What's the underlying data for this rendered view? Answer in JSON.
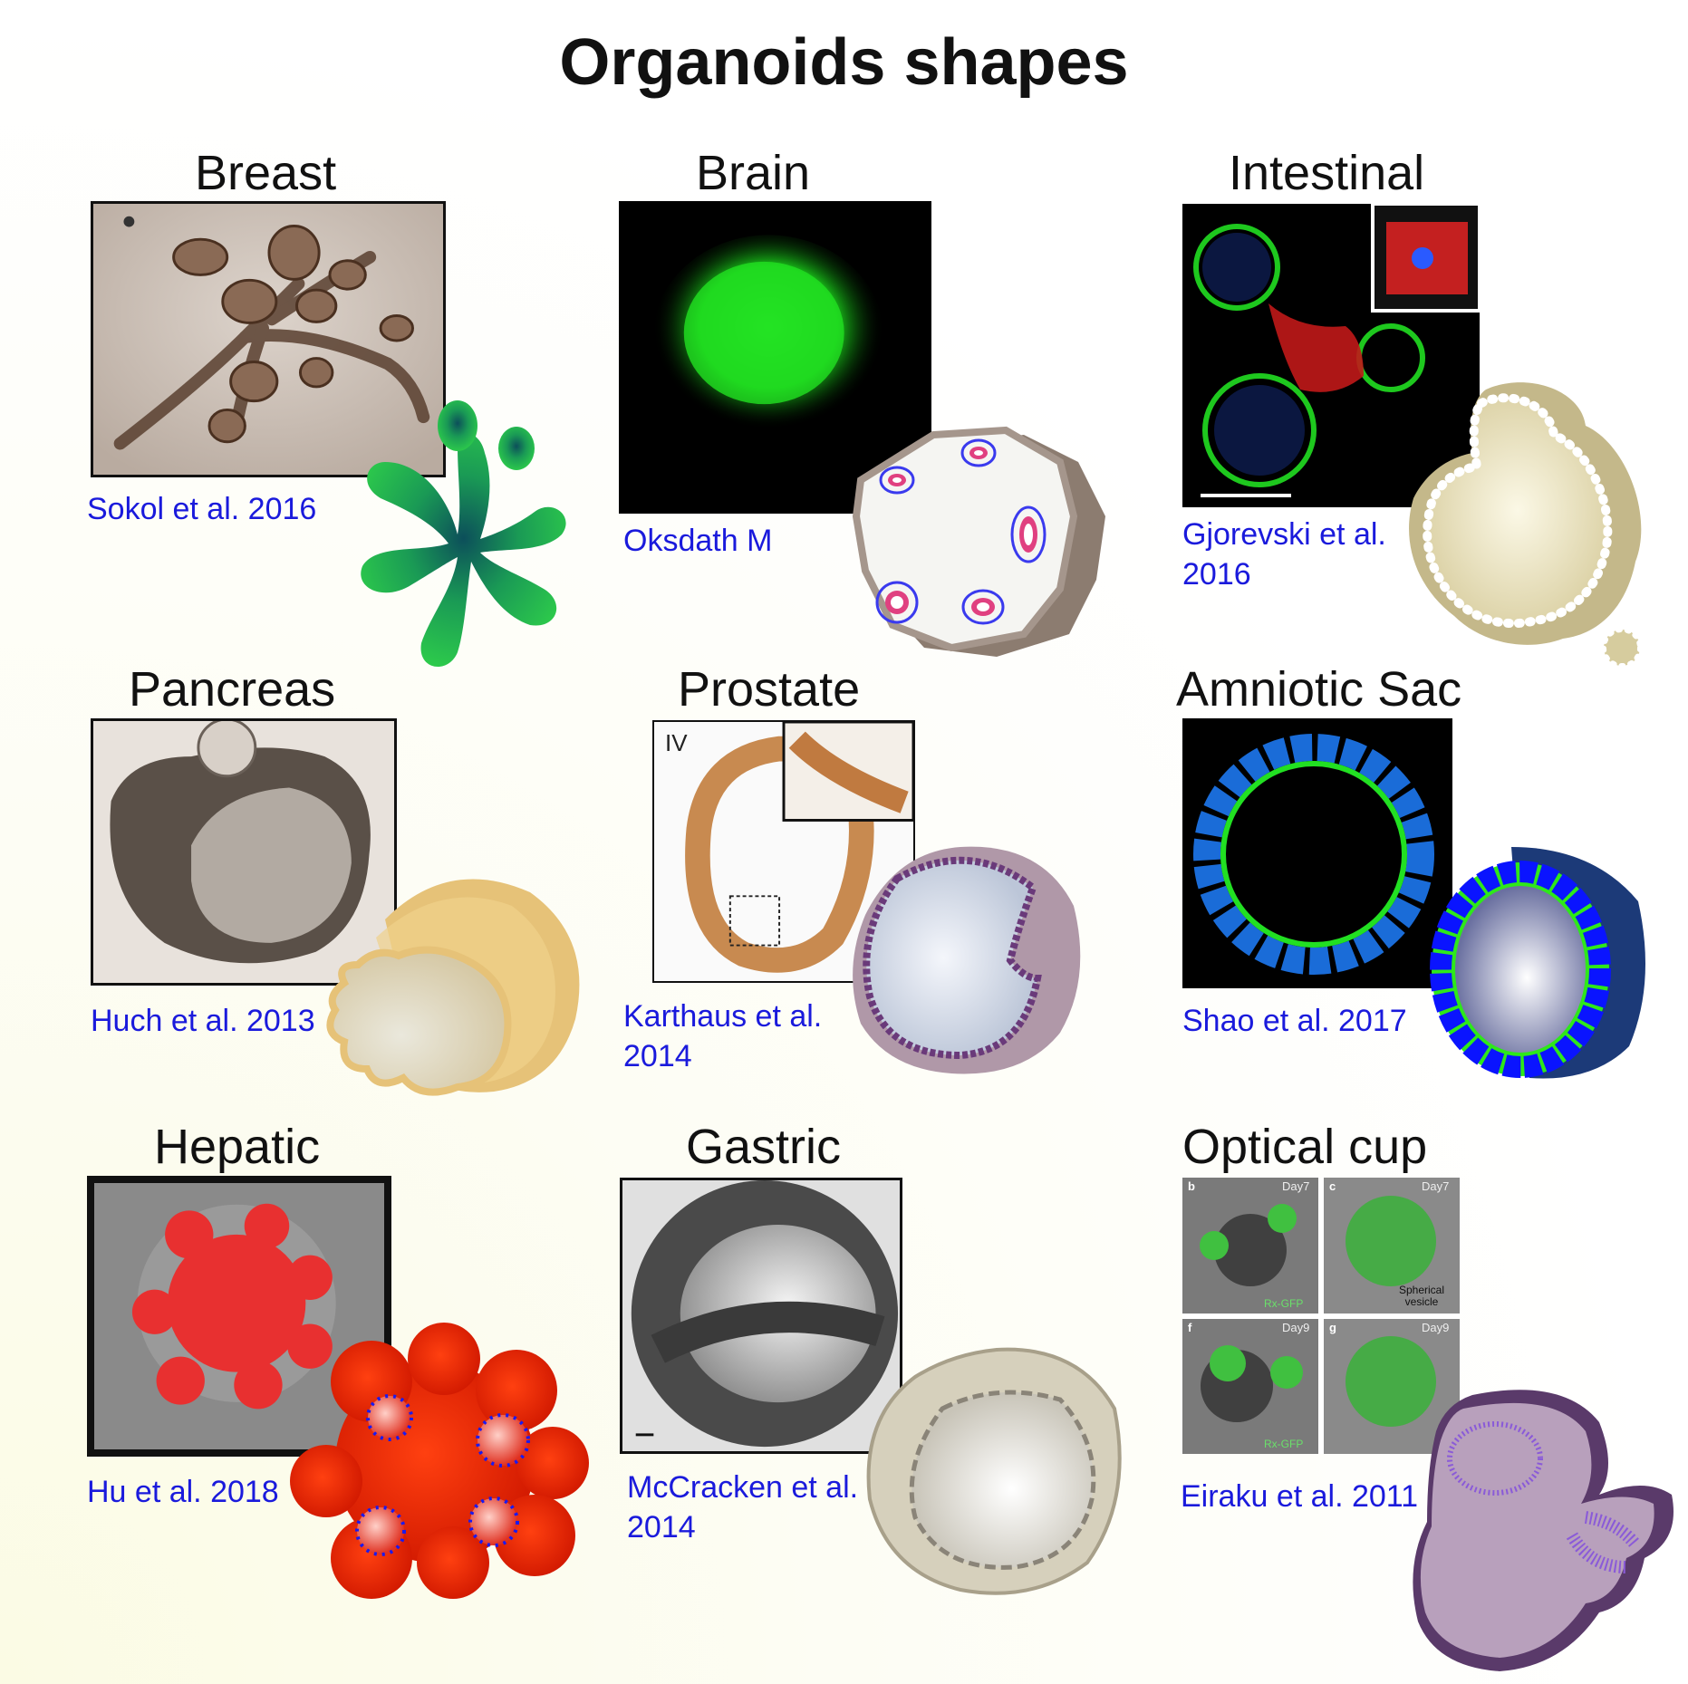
{
  "title": "Organoids shapes",
  "panels": {
    "breast": {
      "label": "Breast",
      "citation": "Sokol et al. 2016"
    },
    "brain": {
      "label": "Brain",
      "citation": "Oksdath M"
    },
    "intestinal": {
      "label": "Intestinal",
      "citation": "Gjorevski et al. 2016"
    },
    "pancreas": {
      "label": "Pancreas",
      "citation": "Huch et al. 2013"
    },
    "prostate": {
      "label": "Prostate",
      "citation": "Karthaus et al. 2014",
      "panel_mark": "IV"
    },
    "amniotic": {
      "label": "Amniotic Sac",
      "citation": "Shao et al. 2017"
    },
    "hepatic": {
      "label": "Hepatic",
      "citation": "Hu et al. 2018"
    },
    "gastric": {
      "label": "Gastric",
      "citation": "McCracken et al. 2014"
    },
    "optical": {
      "label": "Optical cup",
      "citation": "Eiraku et al. 2011",
      "subpanels": [
        {
          "letter": "b",
          "day": "Day7",
          "tag": "Rx-GFP"
        },
        {
          "letter": "c",
          "day": "Day7",
          "tag": "Spherical vesicle"
        },
        {
          "letter": "f",
          "day": "Day9",
          "tag": "Rx-GFP"
        },
        {
          "letter": "g",
          "day": "Day9",
          "tag": ""
        }
      ]
    }
  },
  "colors": {
    "citation": "#1a1adc",
    "breast_model": "#22b04a",
    "hepatic_model": "#ff2a00",
    "amniotic_ring": "#2ee81a",
    "amniotic_nuclei": "#0a14ff",
    "brain_fluorescence": "#1fe01f"
  }
}
